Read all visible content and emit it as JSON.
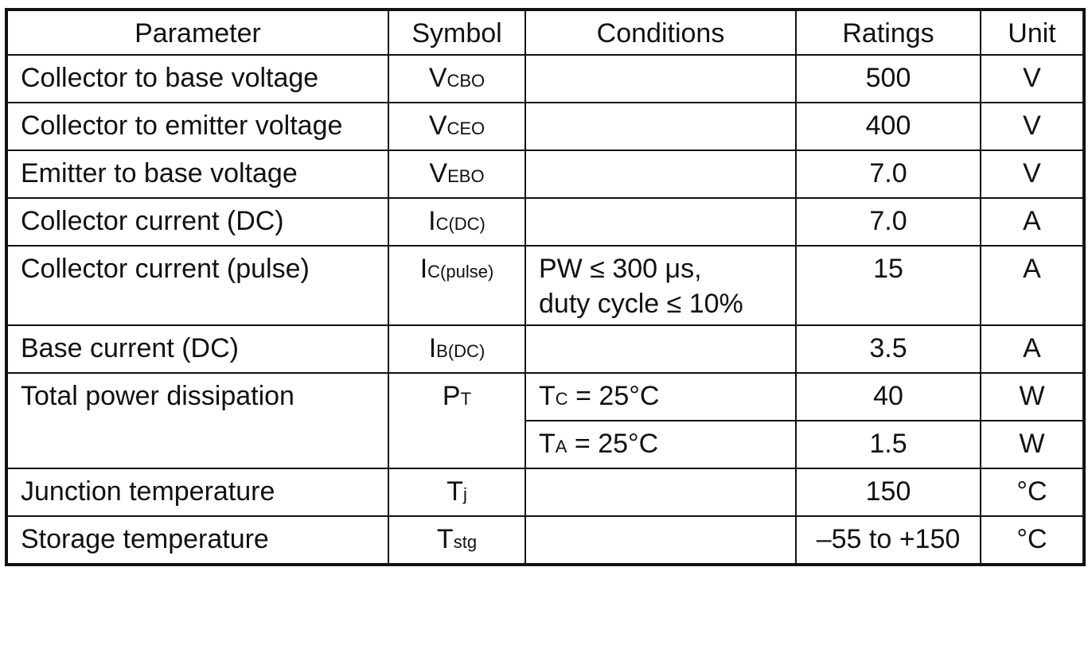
{
  "headers": [
    "Parameter",
    "Symbol",
    "Conditions",
    "Ratings",
    "Unit"
  ],
  "rows": [
    {
      "param": "Collector to base voltage",
      "sym": "V",
      "sub": "CBO",
      "cond": "",
      "rating": "500",
      "unit": "V"
    },
    {
      "param": "Collector to emitter voltage",
      "sym": "V",
      "sub": "CEO",
      "cond": "",
      "rating": "400",
      "unit": "V"
    },
    {
      "param": "Emitter to base voltage",
      "sym": "V",
      "sub": "EBO",
      "cond": "",
      "rating": "7.0",
      "unit": "V"
    },
    {
      "param": "Collector current (DC)",
      "sym": "I",
      "sub": "C(DC)",
      "cond": "",
      "rating": "7.0",
      "unit": "A"
    },
    {
      "param": "Collector current (pulse)",
      "sym": "I",
      "sub": "C(pulse)",
      "cond_line1": "PW ≤ 300 μs,",
      "cond_line2": "duty cycle ≤ 10%",
      "rating": "15",
      "unit": "A"
    },
    {
      "param": "Base current (DC)",
      "sym": "I",
      "sub": "B(DC)",
      "cond": "",
      "rating": "3.5",
      "unit": "A"
    },
    {
      "param": "Total power dissipation",
      "sym": "P",
      "sub": "T",
      "conds": [
        {
          "sym": "T",
          "sub": "C",
          "rest": " = 25°C",
          "rating": "40",
          "unit": "W"
        },
        {
          "sym": "T",
          "sub": "A",
          "rest": " = 25°C",
          "rating": "1.5",
          "unit": "W"
        }
      ]
    },
    {
      "param": "Junction temperature",
      "sym": "T",
      "sub": "j",
      "cond": "",
      "rating": "150",
      "unit": "°C"
    },
    {
      "param": "Storage temperature",
      "sym": "T",
      "sub": "stg",
      "cond": "",
      "rating": "–55 to +150",
      "unit": "°C"
    }
  ]
}
